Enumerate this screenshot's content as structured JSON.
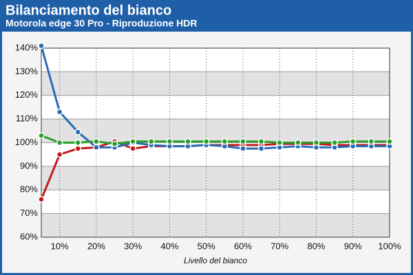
{
  "chart_data": {
    "type": "line",
    "title": "Bilanciamento del bianco",
    "subtitle": "Motorola edge 30 Pro - Riproduzione HDR",
    "x_label": "Livello del bianco",
    "x": [
      5,
      10,
      15,
      20,
      25,
      30,
      35,
      40,
      45,
      50,
      55,
      60,
      65,
      70,
      75,
      80,
      85,
      90,
      95,
      100
    ],
    "series": [
      {
        "color": "#c0181f",
        "values": [
          76,
          95,
          97.5,
          98,
          100.5,
          97.5,
          98.5,
          98.5,
          98.5,
          99,
          99,
          99,
          99,
          99.5,
          99.5,
          99.5,
          99,
          99,
          99,
          99
        ]
      },
      {
        "color": "#2a6bb5",
        "values": [
          141,
          113,
          104.5,
          98,
          98,
          100,
          99,
          98.5,
          98.5,
          99,
          98.5,
          97.5,
          97.5,
          98,
          98.5,
          98,
          98,
          98.5,
          98.5,
          98.5
        ]
      },
      {
        "color": "#2aa02a",
        "values": [
          103,
          100,
          100,
          100.5,
          99.5,
          100.5,
          100.5,
          100.5,
          100.5,
          100.5,
          100.5,
          100.5,
          100.5,
          100,
          100,
          100,
          100,
          100.5,
          100.5,
          100.5
        ]
      }
    ],
    "xlim": [
      5,
      100
    ],
    "ylim": [
      60,
      140
    ],
    "xticks": [
      {
        "value": 10,
        "label": "10%"
      },
      {
        "value": 20,
        "label": "20%"
      },
      {
        "value": 30,
        "label": "30%"
      },
      {
        "value": 40,
        "label": "40%"
      },
      {
        "value": 50,
        "label": "50%"
      },
      {
        "value": 60,
        "label": "60%"
      },
      {
        "value": 70,
        "label": "70%"
      },
      {
        "value": 80,
        "label": "80%"
      },
      {
        "value": 90,
        "label": "90%"
      },
      {
        "value": 100,
        "label": "100%"
      }
    ],
    "yticks": [
      {
        "value": 60,
        "label": "60%"
      },
      {
        "value": 70,
        "label": "70%"
      },
      {
        "value": 80,
        "label": "80%"
      },
      {
        "value": 90,
        "label": "90%"
      },
      {
        "value": 100,
        "label": "100%"
      },
      {
        "value": 110,
        "label": "110%"
      },
      {
        "value": 120,
        "label": "120%"
      },
      {
        "value": 130,
        "label": "130%"
      },
      {
        "value": 140,
        "label": "140%"
      }
    ],
    "grid": true
  }
}
